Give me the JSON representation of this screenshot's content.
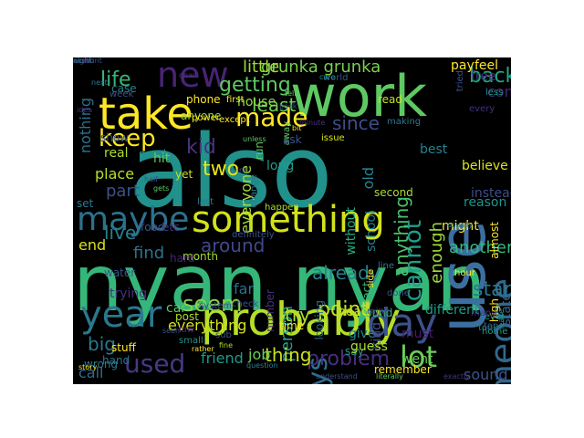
{
  "wordcloud": {
    "background": "#000000",
    "palette": [
      "#440154",
      "#3b528b",
      "#21918c",
      "#5ec962",
      "#fde725"
    ],
    "words": [
      {
        "text": "also",
        "c": "#21918c"
      },
      {
        "text": "nyan nyan",
        "c": "#35b779"
      },
      {
        "text": "work",
        "c": "#5ec962"
      },
      {
        "text": "use",
        "c": "#3b6fa0"
      },
      {
        "text": "something",
        "c": "#d2e21b"
      },
      {
        "text": "probably",
        "c": "#b5de2b"
      },
      {
        "text": "take",
        "c": "#fde725"
      },
      {
        "text": "new",
        "c": "#482475"
      },
      {
        "text": "day",
        "c": "#3b528b"
      },
      {
        "text": "year",
        "c": "#2a788e"
      },
      {
        "text": "someone",
        "c": "#31688e"
      },
      {
        "text": "maybe",
        "c": "#2c728e"
      },
      {
        "text": "always",
        "c": "#2e6f8e"
      },
      {
        "text": "used",
        "c": "#443983"
      },
      {
        "text": "lot",
        "c": "#6ccd5a"
      },
      {
        "text": "cannot",
        "c": "#1f9e89"
      },
      {
        "text": "seem",
        "c": "#86d549"
      },
      {
        "text": "made",
        "c": "#fde725"
      },
      {
        "text": "keep",
        "c": "#fde725"
      },
      {
        "text": "getting",
        "c": "#5ec962"
      },
      {
        "text": "grunka grunka",
        "c": "#7ad151"
      },
      {
        "text": "little",
        "c": "#a0da39"
      },
      {
        "text": "problem",
        "c": "#46307e"
      },
      {
        "text": "point",
        "c": "#c2df23"
      },
      {
        "text": "person",
        "c": "#1fa187"
      },
      {
        "text": "start",
        "c": "#2a788e"
      },
      {
        "text": "already",
        "c": "#26828e"
      },
      {
        "text": "around",
        "c": "#3e4a89"
      },
      {
        "text": "anything",
        "c": "#4ac16d"
      },
      {
        "text": "enough",
        "c": "#9fda3a"
      },
      {
        "text": "back",
        "c": "#22a884"
      },
      {
        "text": "since",
        "c": "#3e4c8a"
      },
      {
        "text": "least",
        "c": "#6ece58"
      },
      {
        "text": "life",
        "c": "#35b779"
      },
      {
        "text": "kid",
        "c": "#46337f"
      },
      {
        "text": "two",
        "c": "#e5e419"
      },
      {
        "text": "part",
        "c": "#3b528b"
      },
      {
        "text": "live",
        "c": "#26828e"
      },
      {
        "text": "friend",
        "c": "#1f9a8a"
      },
      {
        "text": "thing",
        "c": "#c8e020"
      },
      {
        "text": "another",
        "c": "#35b779"
      },
      {
        "text": "find",
        "c": "#2c728e"
      },
      {
        "text": "call",
        "c": "#306a8e"
      },
      {
        "text": "big",
        "c": "#2a788e"
      },
      {
        "text": "try",
        "c": "#addc30"
      },
      {
        "text": "sound",
        "c": "#3b528b"
      },
      {
        "text": "end",
        "c": "#d8e219"
      },
      {
        "text": "old",
        "c": "#25858e"
      },
      {
        "text": "without",
        "c": "#25ac82"
      },
      {
        "text": "nothing",
        "c": "#2d718e"
      },
      {
        "text": "come",
        "c": "#482878"
      },
      {
        "text": "case",
        "c": "#26828e"
      },
      {
        "text": "house",
        "c": "#95d840"
      },
      {
        "text": "feel",
        "c": "#fde725"
      },
      {
        "text": "pay",
        "c": "#fde725"
      },
      {
        "text": "free",
        "c": "#46337f"
      },
      {
        "text": "everyone",
        "c": "#a8db34"
      },
      {
        "text": "might",
        "c": "#fde725"
      },
      {
        "text": "reason",
        "c": "#1f958b"
      },
      {
        "text": "believe",
        "c": "#dde318"
      },
      {
        "text": "instead",
        "c": "#3e4c8a"
      },
      {
        "text": "different",
        "c": "#1f9e89"
      },
      {
        "text": "went",
        "c": "#6ece58"
      },
      {
        "text": "must",
        "c": "#481a6c"
      },
      {
        "text": "hand",
        "c": "#2c728e"
      },
      {
        "text": "job",
        "c": "#6ccd5a"
      },
      {
        "text": "water",
        "c": "#3b528b"
      },
      {
        "text": "trying",
        "c": "#46307e"
      },
      {
        "text": "month",
        "c": "#a2da37"
      },
      {
        "text": "post",
        "c": "#addc30"
      },
      {
        "text": "far",
        "c": "#2e6e8e"
      },
      {
        "text": "best",
        "c": "#26828e"
      },
      {
        "text": "need",
        "c": "#21918c"
      },
      {
        "text": "hard",
        "c": "#482475"
      },
      {
        "text": "yet",
        "c": "#c8e020"
      },
      {
        "text": "hit",
        "c": "#5ec962"
      },
      {
        "text": "long",
        "c": "#1f9e89"
      },
      {
        "text": "real",
        "c": "#addc30"
      },
      {
        "text": "show",
        "c": "#3b528b"
      },
      {
        "text": "anyone",
        "c": "#8fd744"
      },
      {
        "text": "place",
        "c": "#b8de29"
      },
      {
        "text": "set",
        "c": "#2a788e"
      },
      {
        "text": "food",
        "c": "#3b528b"
      },
      {
        "text": "etc",
        "c": "#453781"
      },
      {
        "text": "car",
        "c": "#5ec962"
      },
      {
        "text": "everything",
        "c": "#d8e219"
      },
      {
        "text": "state",
        "c": "#31688e"
      },
      {
        "text": "found",
        "c": "#35b779"
      },
      {
        "text": "head",
        "c": "#c2df23"
      },
      {
        "text": "give",
        "c": "#25858e"
      },
      {
        "text": "say",
        "c": "#1f9e89"
      },
      {
        "text": "kind",
        "c": "#3b528b"
      },
      {
        "text": "time",
        "c": "#fde725"
      },
      {
        "text": "guess",
        "c": "#addc30"
      },
      {
        "text": "remember",
        "c": "#fde725"
      },
      {
        "text": "stuff",
        "c": "#fde725"
      },
      {
        "text": "almost",
        "c": "#fde725"
      },
      {
        "text": "wrong",
        "c": "#2a788e"
      },
      {
        "text": "looking",
        "c": "#2d708e"
      },
      {
        "text": "number",
        "c": "#46337f"
      },
      {
        "text": "second",
        "c": "#addc30"
      },
      {
        "text": "read",
        "c": "#c8e020"
      },
      {
        "text": "week",
        "c": "#3b528b"
      },
      {
        "text": "phone",
        "c": "#fde725"
      },
      {
        "text": "first",
        "c": "#fde725"
      },
      {
        "text": "world",
        "c": "#3b528b"
      },
      {
        "text": "school",
        "c": "#26828e"
      },
      {
        "text": "fact",
        "c": "#35b779"
      },
      {
        "text": "line",
        "c": "#2a788e"
      },
      {
        "text": "home",
        "c": "#1f9e89"
      },
      {
        "text": "top",
        "c": "#3b528b"
      },
      {
        "text": "high",
        "c": "#fde725"
      },
      {
        "text": "every",
        "c": "#46307e"
      },
      {
        "text": "less",
        "c": "#21918c"
      },
      {
        "text": "power",
        "c": "#fde725"
      },
      {
        "text": "away",
        "c": "#5ec962"
      },
      {
        "text": "issue",
        "c": "#d8e219"
      },
      {
        "text": "ask",
        "c": "#3b528b"
      },
      {
        "text": "run",
        "c": "#5ec962"
      },
      {
        "text": "change",
        "c": "#2a788e"
      },
      {
        "text": "side",
        "c": "#fde725"
      },
      {
        "text": "last",
        "c": "#2a788e"
      },
      {
        "text": "definitely",
        "c": "#3b528b"
      },
      {
        "text": "happen",
        "c": "#addc30"
      },
      {
        "text": "mine",
        "c": "#3e4c8a"
      },
      {
        "text": "level",
        "c": "#21918c"
      },
      {
        "text": "took",
        "c": "#2a788e"
      },
      {
        "text": "system",
        "c": "#3b528b"
      },
      {
        "text": "check",
        "c": "#3b528b"
      },
      {
        "text": "many",
        "c": "#46337f"
      },
      {
        "text": "hour",
        "c": "#fde725"
      },
      {
        "text": "except",
        "c": "#fde725"
      },
      {
        "text": "tried",
        "c": "#3b528b"
      },
      {
        "text": "making",
        "c": "#2a788e"
      },
      {
        "text": "question",
        "c": "#26828e"
      },
      {
        "text": "understand",
        "c": "#3b528b"
      },
      {
        "text": "literally",
        "c": "#5ec962"
      },
      {
        "text": "exactly",
        "c": "#46337f"
      },
      {
        "text": "done",
        "c": "#3b528b"
      },
      {
        "text": "unless",
        "c": "#5ec962"
      },
      {
        "text": "leave",
        "c": "#21918c"
      },
      {
        "text": "usually",
        "c": "#2a788e"
      },
      {
        "text": "story",
        "c": "#fde725"
      },
      {
        "text": "half",
        "c": "#3b528b"
      },
      {
        "text": "dead",
        "c": "#46337f"
      },
      {
        "text": "idea",
        "c": "#46337f"
      },
      {
        "text": "mind",
        "c": "#3b528b"
      },
      {
        "text": "law",
        "c": "#482475"
      },
      {
        "text": "sub",
        "c": "#3b528b"
      },
      {
        "text": "fine",
        "c": "#addc30"
      },
      {
        "text": "gets",
        "c": "#5ec962"
      },
      {
        "text": "small",
        "c": "#21918c"
      },
      {
        "text": "seen",
        "c": "#3b528b"
      },
      {
        "text": "rather",
        "c": "#fde725"
      },
      {
        "text": "bit",
        "c": "#fde725"
      },
      {
        "text": "care",
        "c": "#21918c"
      },
      {
        "text": "minute",
        "c": "#46337f"
      },
      {
        "text": "tell",
        "c": "#5ec962"
      },
      {
        "text": "book",
        "c": "#3b528b"
      },
      {
        "text": "next",
        "c": "#2a788e"
      },
      {
        "text": "account",
        "c": "#3b528b"
      },
      {
        "text": "worth",
        "c": "#46337f"
      },
      {
        "text": "night",
        "c": "#2a788e"
      }
    ]
  }
}
